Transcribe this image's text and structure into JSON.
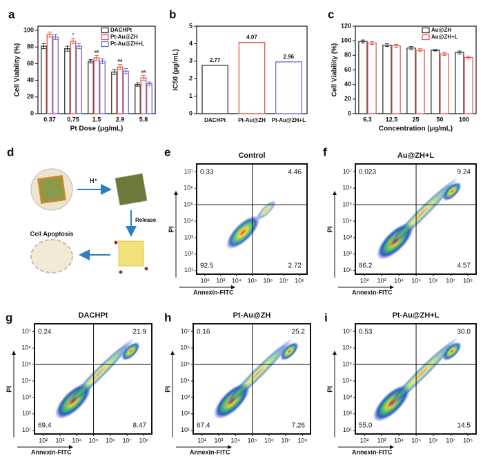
{
  "chart_data": [
    {
      "type": "grouped_bar",
      "panel_label": "a",
      "xlabel": "Pt Dose (μg/mL)",
      "ylabel": "Cell Viability (%)",
      "categories": [
        "0.37",
        "0.75",
        "1.5",
        "2.9",
        "5.8"
      ],
      "series": [
        {
          "name": "DACHPt",
          "color": "#333333",
          "values": [
            81,
            78,
            63,
            50,
            35
          ],
          "errors": [
            3,
            3,
            2,
            3,
            2
          ]
        },
        {
          "name": "Pt-Au@ZH",
          "color": "#e0584f",
          "values": [
            95,
            87,
            67,
            56,
            43
          ],
          "errors": [
            3,
            3,
            3,
            3,
            3
          ]
        },
        {
          "name": "Pt-Au@ZH+L",
          "color": "#6a6ad8",
          "values": [
            92,
            81,
            63,
            51,
            36
          ],
          "errors": [
            3,
            3,
            3,
            3,
            2
          ]
        }
      ],
      "annotations": [
        null,
        "*",
        "##",
        "##",
        "##"
      ],
      "ylim": [
        0,
        105
      ],
      "yticks": [
        0,
        20,
        40,
        60,
        80,
        100
      ],
      "legend": "top-right"
    },
    {
      "type": "bar",
      "panel_label": "b",
      "ylabel": "IC50 (μg/mL)",
      "categories": [
        "DACHPt",
        "Pt-Au@ZH",
        "Pt-Au@ZH+L"
      ],
      "values": [
        2.77,
        4.07,
        2.96
      ],
      "value_labels": [
        "2.77",
        "4.07",
        "2.96"
      ],
      "colors": [
        "#333333",
        "#e0584f",
        "#6a6ad8"
      ],
      "ylim": [
        0,
        5
      ],
      "yticks": [
        0,
        1,
        2,
        3,
        4,
        5
      ]
    },
    {
      "type": "grouped_bar",
      "panel_label": "c",
      "xlabel": "Concentration (μg/mL)",
      "ylabel": "Cell Viability (%)",
      "categories": [
        "6.3",
        "12.5",
        "25",
        "50",
        "100"
      ],
      "series": [
        {
          "name": "Au@ZH",
          "color": "#333333",
          "values": [
            99,
            94,
            90,
            87,
            84
          ],
          "errors": [
            2,
            2,
            2,
            1,
            2
          ]
        },
        {
          "name": "Au@ZH+L",
          "color": "#e0584f",
          "values": [
            97,
            93,
            87,
            82,
            77
          ],
          "errors": [
            2,
            2,
            2,
            2,
            2
          ]
        }
      ],
      "ylim": [
        0,
        120
      ],
      "yticks": [
        0,
        20,
        40,
        60,
        80,
        100,
        120
      ],
      "legend": "top-right"
    },
    {
      "type": "flow",
      "panel_label": "e",
      "title": "Control",
      "xlabel": "Annexin-FITC",
      "ylabel": "PI",
      "quadrant_labels": [
        "0.33",
        "4.46",
        "92.5",
        "2.72"
      ],
      "gate": [
        100000,
        100000
      ],
      "xscale": "log",
      "yscale": "log",
      "xlim": [
        30,
        300000000
      ],
      "ylim": [
        6,
        30000000
      ],
      "xticks": [
        {
          "value": 100,
          "label": "10²"
        },
        {
          "value": 1000,
          "label": "10³"
        },
        {
          "value": 10000,
          "label": "10⁴"
        },
        {
          "value": 100000,
          "label": "10⁵"
        },
        {
          "value": 1000000,
          "label": "10⁶"
        },
        {
          "value": 10000000,
          "label": "10⁷"
        },
        {
          "value": 100000000,
          "label": "10⁸"
        }
      ],
      "yticks": [
        {
          "value": 10,
          "label": "10¹"
        },
        {
          "value": 100,
          "label": "10²"
        },
        {
          "value": 1000,
          "label": "10³"
        },
        {
          "value": 10000,
          "label": "10⁴"
        },
        {
          "value": 100000,
          "label": "10⁵"
        },
        {
          "value": 1000000,
          "label": "10⁶"
        },
        {
          "value": 10000000,
          "label": "10⁷"
        }
      ]
    },
    {
      "type": "flow",
      "panel_label": "f",
      "title": "Au@ZH+L",
      "xlabel": "Annexin-FITC",
      "ylabel": "PI",
      "quadrant_labels": [
        "0.023",
        "9.24",
        "86.2",
        "4.57"
      ],
      "gate": [
        100000,
        100000
      ],
      "xscale": "log",
      "yscale": "log",
      "xlim": [
        30,
        300000000
      ],
      "ylim": [
        6,
        30000000
      ],
      "xticks": [
        {
          "value": 100,
          "label": "10²"
        },
        {
          "value": 1000,
          "label": "10³"
        },
        {
          "value": 10000,
          "label": "10⁴"
        },
        {
          "value": 100000,
          "label": "10⁵"
        },
        {
          "value": 1000000,
          "label": "10⁶"
        },
        {
          "value": 10000000,
          "label": "10⁷"
        },
        {
          "value": 100000000,
          "label": "10⁸"
        }
      ],
      "yticks": [
        {
          "value": 10,
          "label": "10¹"
        },
        {
          "value": 100,
          "label": "10²"
        },
        {
          "value": 1000,
          "label": "10³"
        },
        {
          "value": 10000,
          "label": "10⁴"
        },
        {
          "value": 100000,
          "label": "10⁵"
        },
        {
          "value": 1000000,
          "label": "10⁶"
        },
        {
          "value": 10000000,
          "label": "10⁷"
        }
      ]
    },
    {
      "type": "flow",
      "panel_label": "g",
      "title": "DACHPt",
      "xlabel": "Annexin-FITC",
      "ylabel": "PI",
      "quadrant_labels": [
        "0.24",
        "21.9",
        "69.4",
        "8.47"
      ],
      "gate": [
        100000,
        100000
      ],
      "xscale": "log",
      "yscale": "log",
      "xlim": [
        30,
        300000000
      ],
      "ylim": [
        6,
        30000000
      ],
      "xticks": [
        {
          "value": 100,
          "label": "10²"
        },
        {
          "value": 1000,
          "label": "10³"
        },
        {
          "value": 10000,
          "label": "10⁴"
        },
        {
          "value": 100000,
          "label": "10⁵"
        },
        {
          "value": 1000000,
          "label": "10⁶"
        },
        {
          "value": 10000000,
          "label": "10⁷"
        },
        {
          "value": 100000000,
          "label": "10⁸"
        }
      ],
      "yticks": [
        {
          "value": 10,
          "label": "10¹"
        },
        {
          "value": 100,
          "label": "10²"
        },
        {
          "value": 1000,
          "label": "10³"
        },
        {
          "value": 10000,
          "label": "10⁴"
        },
        {
          "value": 100000,
          "label": "10⁵"
        },
        {
          "value": 1000000,
          "label": "10⁶"
        },
        {
          "value": 10000000,
          "label": "10⁷"
        }
      ]
    },
    {
      "type": "flow",
      "panel_label": "h",
      "title": "Pt-Au@ZH",
      "xlabel": "Annexin-FITC",
      "ylabel": "PI",
      "quadrant_labels": [
        "0.16",
        "25.2",
        "67.4",
        "7.26"
      ],
      "gate": [
        100000,
        100000
      ],
      "xscale": "log",
      "yscale": "log",
      "xlim": [
        30,
        300000000
      ],
      "ylim": [
        6,
        30000000
      ],
      "xticks": [
        {
          "value": 100,
          "label": "10²"
        },
        {
          "value": 1000,
          "label": "10³"
        },
        {
          "value": 10000,
          "label": "10⁴"
        },
        {
          "value": 100000,
          "label": "10⁵"
        },
        {
          "value": 1000000,
          "label": "10⁶"
        },
        {
          "value": 10000000,
          "label": "10⁷"
        },
        {
          "value": 100000000,
          "label": "10⁸"
        }
      ],
      "yticks": [
        {
          "value": 10,
          "label": "10¹"
        },
        {
          "value": 100,
          "label": "10²"
        },
        {
          "value": 1000,
          "label": "10³"
        },
        {
          "value": 10000,
          "label": "10⁴"
        },
        {
          "value": 100000,
          "label": "10⁵"
        },
        {
          "value": 1000000,
          "label": "10⁶"
        },
        {
          "value": 10000000,
          "label": "10⁷"
        }
      ]
    },
    {
      "type": "flow",
      "panel_label": "i",
      "title": "Pt-Au@ZH+L",
      "xlabel": "Annexin-FITC",
      "ylabel": "PI",
      "quadrant_labels": [
        "0.53",
        "30.0",
        "55.0",
        "14.5"
      ],
      "gate": [
        100000,
        100000
      ],
      "xscale": "log",
      "yscale": "log",
      "xlim": [
        30,
        300000000
      ],
      "ylim": [
        6,
        30000000
      ],
      "xticks": [
        {
          "value": 100,
          "label": "10²"
        },
        {
          "value": 1000,
          "label": "10³"
        },
        {
          "value": 10000,
          "label": "10⁴"
        },
        {
          "value": 100000,
          "label": "10⁵"
        },
        {
          "value": 1000000,
          "label": "10⁶"
        },
        {
          "value": 10000000,
          "label": "10⁷"
        },
        {
          "value": 100000000,
          "label": "10⁸"
        }
      ],
      "yticks": [
        {
          "value": 10,
          "label": "10¹"
        },
        {
          "value": 100,
          "label": "10²"
        },
        {
          "value": 1000,
          "label": "10³"
        },
        {
          "value": 10000,
          "label": "10⁴"
        },
        {
          "value": 100000,
          "label": "10⁵"
        },
        {
          "value": 1000000,
          "label": "10⁶"
        },
        {
          "value": 10000000,
          "label": "10⁷"
        }
      ]
    }
  ],
  "diagram": {
    "panel_label": "d",
    "texts": [
      "H⁺",
      "Release",
      "Cell Apoptosis"
    ]
  }
}
